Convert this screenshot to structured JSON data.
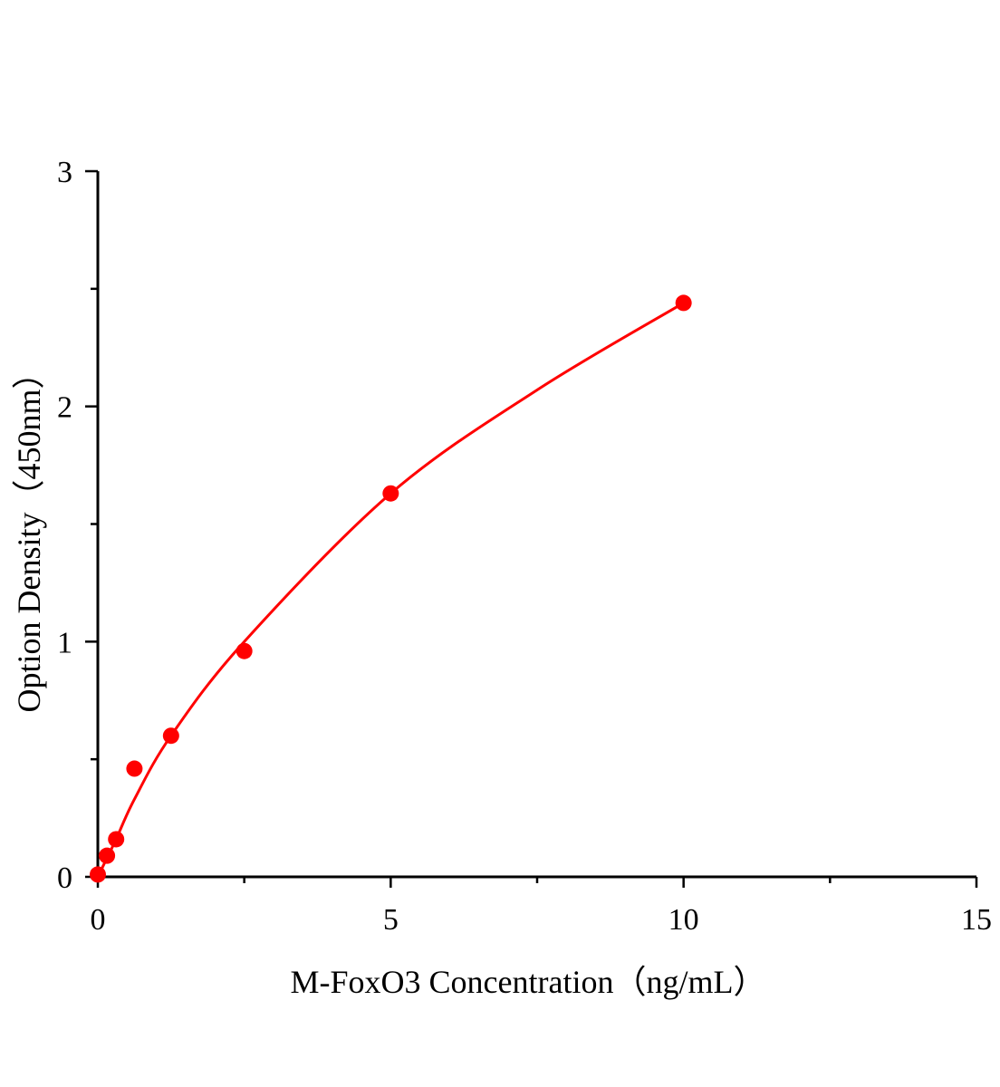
{
  "chart_data": {
    "type": "scatter",
    "title": "",
    "xlabel": "M-FoxO3 Concentration（ng/mL）",
    "ylabel": "Option Density（450nm）",
    "xlim": [
      0,
      15
    ],
    "ylim": [
      0,
      3
    ],
    "xticks": [
      "0",
      "5",
      "10",
      "15"
    ],
    "yticks": [
      "0",
      "1",
      "2",
      "3"
    ],
    "grid": false,
    "legend": "none",
    "series": [
      {
        "x": [
          0,
          0.156,
          0.3125,
          0.625,
          1.25,
          2.5,
          5,
          10
        ],
        "y": [
          0.01,
          0.09,
          0.16,
          0.46,
          0.6,
          0.96,
          1.63,
          2.44
        ],
        "color": "#ff0000"
      }
    ],
    "fit_curve": {
      "x": [
        0,
        0.156,
        0.3125,
        0.625,
        1.25,
        2.5,
        5,
        7.5,
        10
      ],
      "y": [
        0,
        0.08,
        0.16,
        0.33,
        0.6,
        1.0,
        1.63,
        2.07,
        2.44
      ],
      "color": "#ff0000"
    }
  }
}
